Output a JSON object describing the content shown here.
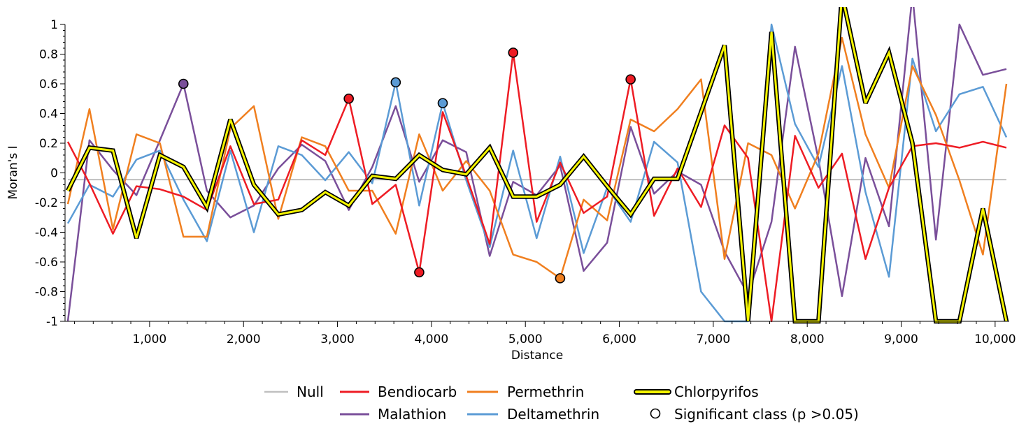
{
  "chart_data": {
    "type": "line",
    "title": "",
    "xlabel": "Distance",
    "ylabel": "Moran's I",
    "xlim": [
      100,
      10150
    ],
    "ylim": [
      -1,
      1
    ],
    "x_ticks": [
      1000,
      2000,
      3000,
      4000,
      5000,
      6000,
      7000,
      8000,
      9000,
      10000
    ],
    "x_tick_labels": [
      "1,000",
      "2,000",
      "3,000",
      "4,000",
      "5,000",
      "6,000",
      "7,000",
      "8,000",
      "9,000",
      "10,000"
    ],
    "y_ticks": [
      -1,
      -0.8,
      -0.6,
      -0.4,
      -0.2,
      0,
      0.2,
      0.4,
      0.6,
      0.8,
      1
    ],
    "y_tick_labels": [
      "-1",
      "-0.8",
      "-0.6",
      "-0.4",
      "-0.2",
      "0",
      "0.2",
      "0.4",
      "0.6",
      "0.8",
      "1"
    ],
    "grid": false,
    "legend_position": "bottom",
    "x": [
      130,
      360,
      610,
      860,
      1110,
      1360,
      1610,
      1860,
      2110,
      2370,
      2620,
      2870,
      3120,
      3370,
      3620,
      3870,
      4120,
      4370,
      4620,
      4870,
      5120,
      5370,
      5620,
      5870,
      6120,
      6370,
      6620,
      6870,
      7120,
      7370,
      7620,
      7870,
      8120,
      8370,
      8620,
      8870,
      9120,
      9370,
      9620,
      9870,
      10120
    ],
    "series": [
      {
        "name": "Null",
        "color": "#c0c0c0",
        "style": "null",
        "values": [
          -0.045,
          -0.045,
          -0.045,
          -0.045,
          -0.045,
          -0.045,
          -0.045,
          -0.045,
          -0.045,
          -0.045,
          -0.045,
          -0.045,
          -0.045,
          -0.045,
          -0.045,
          -0.045,
          -0.045,
          -0.045,
          -0.045,
          -0.045,
          -0.045,
          -0.045,
          -0.045,
          -0.045,
          -0.045,
          -0.045,
          -0.045,
          -0.045,
          -0.045,
          -0.045,
          -0.045,
          -0.045,
          -0.045,
          -0.045,
          -0.045,
          -0.045,
          -0.045,
          -0.045,
          -0.045,
          -0.045,
          -0.045
        ]
      },
      {
        "name": "Bendiocarb",
        "color": "#ee1c24",
        "style": "line",
        "values": [
          0.21,
          -0.07,
          -0.41,
          -0.09,
          -0.11,
          -0.16,
          -0.25,
          0.18,
          -0.21,
          -0.18,
          0.22,
          0.12,
          0.5,
          -0.21,
          -0.08,
          -0.67,
          0.41,
          -0.02,
          -0.48,
          0.81,
          -0.33,
          0.07,
          -0.27,
          -0.16,
          0.63,
          -0.29,
          0.03,
          -0.23,
          0.32,
          0.1,
          -1.0,
          0.25,
          -0.1,
          0.13,
          -0.58,
          -0.1,
          0.18,
          0.2,
          0.17,
          0.21,
          0.17
        ],
        "significant": [
          false,
          false,
          false,
          false,
          false,
          false,
          false,
          false,
          false,
          false,
          false,
          false,
          true,
          false,
          false,
          true,
          false,
          false,
          false,
          true,
          false,
          false,
          false,
          false,
          true,
          false,
          false,
          false,
          false,
          false,
          false,
          false,
          false,
          false,
          false,
          false,
          false,
          false,
          false,
          false,
          false
        ]
      },
      {
        "name": "Permethrin",
        "color": "#f07f1f",
        "style": "line",
        "values": [
          -0.21,
          0.43,
          -0.38,
          0.26,
          0.2,
          -0.43,
          -0.43,
          0.3,
          0.45,
          -0.31,
          0.24,
          0.18,
          -0.12,
          -0.12,
          -0.41,
          0.26,
          -0.12,
          0.08,
          -0.12,
          -0.55,
          -0.6,
          -0.71,
          -0.18,
          -0.32,
          0.36,
          0.28,
          0.43,
          0.63,
          -0.58,
          0.2,
          0.12,
          -0.24,
          0.13,
          0.91,
          0.26,
          -0.1,
          0.72,
          0.39,
          -0.05,
          -0.55,
          0.6
        ],
        "significant": [
          false,
          false,
          false,
          false,
          false,
          false,
          false,
          false,
          false,
          false,
          false,
          false,
          false,
          false,
          false,
          false,
          false,
          false,
          false,
          false,
          false,
          true,
          false,
          false,
          false,
          false,
          false,
          false,
          false,
          false,
          false,
          false,
          false,
          false,
          false,
          false,
          false,
          false,
          false,
          false,
          false
        ]
      },
      {
        "name": "Chlorpyrifos",
        "color": "#f5f500",
        "style": "outlined",
        "values": [
          -0.12,
          0.17,
          0.15,
          -0.44,
          0.12,
          0.04,
          -0.23,
          0.36,
          -0.08,
          -0.28,
          -0.25,
          -0.13,
          -0.22,
          -0.02,
          -0.04,
          0.12,
          0.02,
          -0.01,
          0.17,
          -0.16,
          -0.16,
          -0.08,
          0.11,
          -0.09,
          -0.28,
          -0.04,
          -0.04,
          0.41,
          0.86,
          -1.0,
          0.95,
          -1.0,
          -1.0,
          1.2,
          0.47,
          0.81,
          0.2,
          -1.0,
          -1.0,
          -0.24,
          -1.0
        ],
        "significant": [
          false,
          false,
          false,
          false,
          false,
          false,
          false,
          false,
          false,
          false,
          false,
          false,
          false,
          false,
          false,
          false,
          false,
          false,
          false,
          false,
          false,
          false,
          false,
          false,
          false,
          false,
          false,
          false,
          false,
          false,
          false,
          false,
          false,
          false,
          false,
          false,
          false,
          false,
          false,
          false,
          false
        ]
      },
      {
        "name": "Malathion",
        "color": "#7a4f9a",
        "style": "line",
        "values": [
          -1.0,
          0.22,
          0.02,
          -0.15,
          0.22,
          0.6,
          -0.12,
          -0.3,
          -0.22,
          0.03,
          0.19,
          0.08,
          -0.25,
          0.04,
          0.45,
          -0.06,
          0.22,
          0.14,
          -0.56,
          -0.06,
          -0.15,
          0.05,
          -0.66,
          -0.47,
          0.31,
          -0.14,
          0.01,
          -0.08,
          -0.53,
          -0.82,
          -0.33,
          0.85,
          0.09,
          -0.83,
          0.1,
          -0.36,
          1.2,
          -0.45,
          1.0,
          0.66,
          0.7
        ],
        "significant": [
          false,
          false,
          false,
          false,
          false,
          true,
          false,
          false,
          false,
          false,
          false,
          false,
          false,
          false,
          false,
          false,
          false,
          false,
          false,
          false,
          false,
          false,
          false,
          false,
          false,
          false,
          false,
          false,
          false,
          false,
          false,
          false,
          false,
          false,
          false,
          false,
          false,
          false,
          false,
          false,
          false
        ]
      },
      {
        "name": "Deltamethrin",
        "color": "#5b9bd5",
        "style": "line",
        "values": [
          -0.34,
          -0.08,
          -0.16,
          0.09,
          0.15,
          -0.18,
          -0.46,
          0.15,
          -0.4,
          0.18,
          0.12,
          -0.05,
          0.14,
          -0.07,
          0.61,
          -0.22,
          0.47,
          -0.05,
          -0.5,
          0.15,
          -0.44,
          0.11,
          -0.54,
          -0.1,
          -0.33,
          0.21,
          0.07,
          -0.8,
          -1.0,
          -1.0,
          1.0,
          0.33,
          0.04,
          0.72,
          -0.13,
          -0.7,
          0.77,
          0.28,
          0.53,
          0.58,
          0.24
        ],
        "significant": [
          false,
          false,
          false,
          false,
          false,
          false,
          false,
          false,
          false,
          false,
          false,
          false,
          false,
          false,
          true,
          false,
          true,
          false,
          false,
          false,
          false,
          false,
          false,
          false,
          false,
          false,
          false,
          false,
          false,
          false,
          false,
          false,
          false,
          false,
          false,
          false,
          false,
          false,
          false,
          false,
          false
        ]
      }
    ],
    "legend": {
      "null_label": "Null",
      "bendiocarb_label": "Bendiocarb",
      "permethrin_label": "Permethrin",
      "chlorpyrifos_label": "Chlorpyrifos",
      "malathion_label": "Malathion",
      "deltamethrin_label": "Deltamethrin",
      "significant_label": "Significant class (p >0.05)"
    }
  }
}
